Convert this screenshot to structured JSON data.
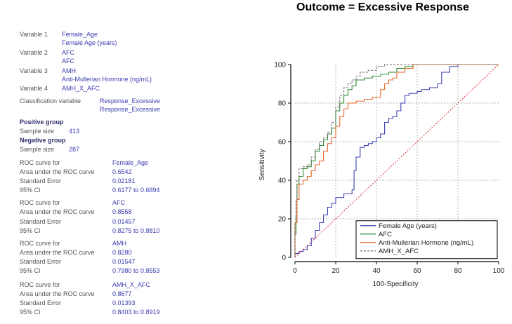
{
  "title": "Outcome = Excessive Response",
  "variables": [
    {
      "label": "Variable 1",
      "name": "Female_Age",
      "desc": "Female Age (years)"
    },
    {
      "label": "Variable 2",
      "name": "AFC",
      "desc": "AFC"
    },
    {
      "label": "Variable 3",
      "name": "AMH",
      "desc": "Anti-Mullerian Hormone (ng/mL)"
    },
    {
      "label": "Variable 4",
      "name": "AMH_X_AFC",
      "desc": ""
    }
  ],
  "classification": {
    "label": "Classification variable",
    "name": "Response_Excessive",
    "desc": "Response_Excessive"
  },
  "positive": {
    "heading": "Positive group",
    "size_label": "Sample size",
    "size": "413"
  },
  "negative": {
    "heading": "Negative group",
    "size_label": "Sample size",
    "size": "287"
  },
  "roc_labels": {
    "curve": "ROC curve for",
    "auc": "Area under the ROC curve",
    "se": "Standard Error",
    "ci": "95% CI"
  },
  "roc_results": [
    {
      "var": "Female_Age",
      "auc": "0.6542",
      "se": "0.02181",
      "ci": "0.6177 to 0.6894"
    },
    {
      "var": "AFC",
      "auc": "0.8558",
      "se": "0.01457",
      "ci": "0.8275 to 0.8810"
    },
    {
      "var": "AMH",
      "auc": "0.8280",
      "se": "0.01547",
      "ci": "0.7980 to 0.8553"
    },
    {
      "var": "AMH_X_AFC",
      "auc": "0.8677",
      "se": "0.01393",
      "ci": "0.8403 to 0.8919"
    }
  ],
  "chart_data": {
    "type": "line",
    "xlabel": "100-Specificity",
    "ylabel": "Sensitivity",
    "xlim": [
      0,
      100
    ],
    "ylim": [
      0,
      100
    ],
    "xticks": [
      0,
      20,
      40,
      60,
      80,
      100
    ],
    "yticks": [
      0,
      20,
      40,
      60,
      80,
      100
    ],
    "grid": true,
    "legend_position": "bottom-right",
    "series": [
      {
        "name": "Female Age (years)",
        "color": "#3b3fb0",
        "dash": "",
        "x": [
          0,
          2,
          4,
          6,
          8,
          10,
          12,
          14,
          16,
          18,
          20,
          24,
          28,
          29,
          30,
          32,
          34,
          36,
          38,
          40,
          42,
          44,
          46,
          48,
          50,
          52,
          54,
          56,
          58,
          60,
          62,
          66,
          70,
          72,
          76,
          80,
          84,
          100
        ],
        "y": [
          0,
          2,
          3,
          4,
          6,
          10,
          14,
          18,
          22,
          26,
          28,
          31,
          33,
          35,
          45,
          52,
          57,
          58,
          59,
          60,
          62,
          64,
          70,
          72,
          73,
          76,
          80,
          84,
          85,
          85,
          86,
          87,
          88,
          90,
          96,
          99,
          100,
          100
        ]
      },
      {
        "name": "AFC",
        "color": "#2a8a2a",
        "dash": "",
        "x": [
          0,
          0.5,
          1,
          2,
          4,
          6,
          8,
          10,
          12,
          14,
          16,
          18,
          20,
          22,
          24,
          26,
          28,
          30,
          34,
          38,
          42,
          46,
          50,
          54,
          58,
          62,
          100
        ],
        "y": [
          0,
          12,
          22,
          38,
          42,
          46,
          47,
          50,
          55,
          58,
          61,
          64,
          67,
          76,
          80,
          84,
          87,
          89,
          92,
          93,
          94,
          95,
          96,
          98,
          99,
          100,
          100
        ]
      },
      {
        "name": "Anti-Mullerian Hormone (ng/mL)",
        "color": "#e8652a",
        "dash": "",
        "x": [
          0,
          1,
          2,
          4,
          6,
          8,
          10,
          12,
          14,
          16,
          18,
          20,
          22,
          24,
          26,
          28,
          30,
          34,
          38,
          42,
          44,
          46,
          48,
          50,
          54,
          58,
          62,
          100
        ],
        "y": [
          0,
          18,
          30,
          38,
          40,
          42,
          45,
          48,
          50,
          55,
          59,
          62,
          68,
          73,
          77,
          80,
          80,
          81,
          82,
          83,
          87,
          90,
          92,
          93,
          96,
          98,
          100,
          100
        ]
      },
      {
        "name": "AMH_X_AFC",
        "color": "#6a6a6a",
        "dash": "3,2",
        "x": [
          0,
          0.5,
          1,
          2,
          4,
          6,
          8,
          10,
          12,
          14,
          16,
          18,
          20,
          22,
          24,
          26,
          28,
          30,
          32,
          36,
          40,
          44,
          48,
          52,
          56,
          100
        ],
        "y": [
          0,
          18,
          30,
          40,
          46,
          47,
          48,
          52,
          56,
          60,
          62,
          65,
          70,
          78,
          84,
          88,
          90,
          92,
          94,
          96,
          97,
          99,
          100,
          100,
          100,
          100
        ]
      },
      {
        "name": "",
        "color": "#e0404a",
        "dash": "2,2",
        "reference": true,
        "x": [
          0,
          100
        ],
        "y": [
          0,
          100
        ]
      }
    ]
  }
}
